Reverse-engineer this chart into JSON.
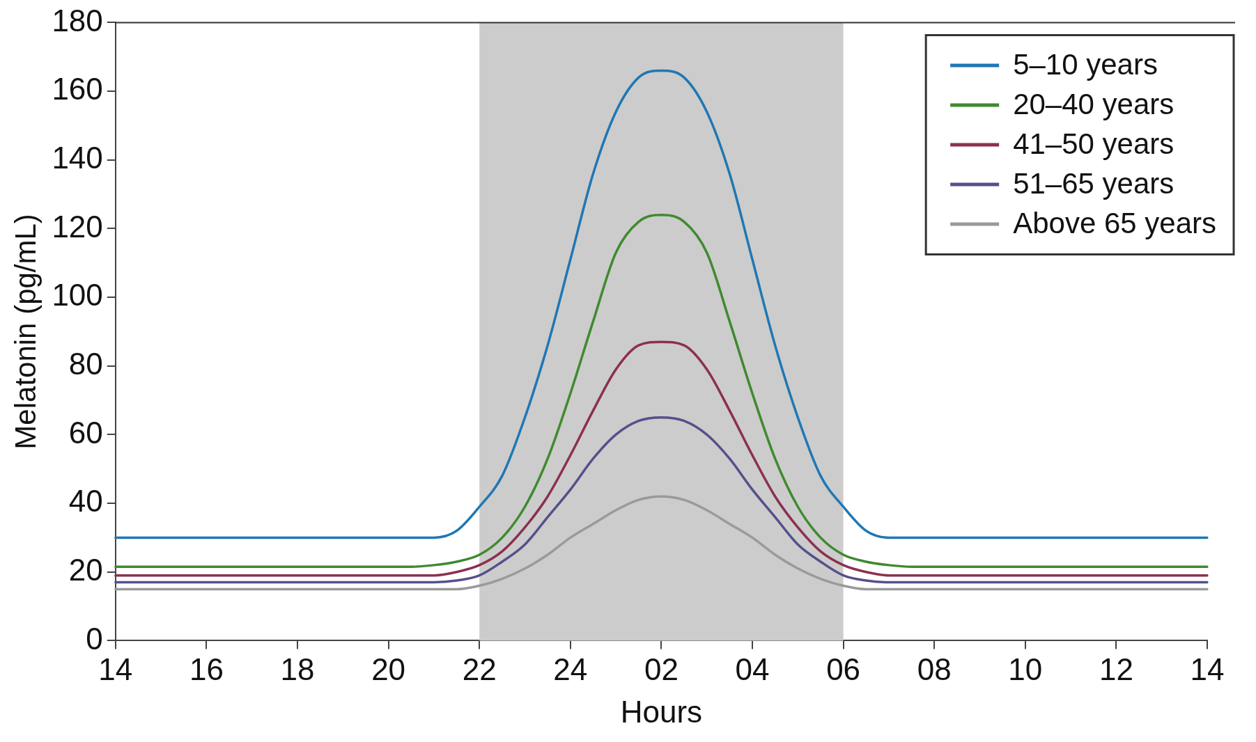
{
  "chart_data": {
    "type": "line",
    "xlabel": "Hours",
    "ylabel": "Melatonin (pg/mL)",
    "categories": [
      "14",
      null,
      null,
      null,
      "16",
      null,
      null,
      null,
      "18",
      null,
      null,
      null,
      "20",
      null,
      null,
      null,
      "22",
      null,
      null,
      null,
      "24",
      null,
      null,
      null,
      "02",
      null,
      null,
      null,
      "04",
      null,
      null,
      null,
      "06",
      null,
      null,
      null,
      "08",
      null,
      null,
      null,
      "10",
      null,
      null,
      null,
      "12",
      null,
      null,
      null,
      "14"
    ],
    "series": [
      {
        "name": "5–10 years",
        "color": "#1f77b4",
        "values": [
          30,
          30,
          30,
          30,
          30,
          30,
          30,
          30,
          30,
          30,
          30,
          30,
          30,
          30,
          30,
          32,
          39,
          48,
          65,
          86,
          111,
          136,
          154,
          164,
          166,
          164,
          154,
          136,
          111,
          86,
          65,
          48,
          39,
          32,
          30,
          30,
          30,
          30,
          30,
          30,
          30,
          30,
          30,
          30,
          30,
          30,
          30,
          30,
          30
        ]
      },
      {
        "name": "20–40 years",
        "color": "#3f8a2f",
        "values": [
          21.5,
          21.5,
          21.5,
          21.5,
          21.5,
          21.5,
          21.5,
          21.5,
          21.5,
          21.5,
          21.5,
          21.5,
          21.5,
          21.5,
          22,
          23,
          25,
          30,
          39,
          53,
          72,
          93,
          113,
          122,
          124,
          122,
          113,
          93,
          72,
          53,
          39,
          30,
          25,
          23,
          22,
          21.5,
          21.5,
          21.5,
          21.5,
          21.5,
          21.5,
          21.5,
          21.5,
          21.5,
          21.5,
          21.5,
          21.5,
          21.5,
          21.5
        ]
      },
      {
        "name": "41–50 years",
        "color": "#8b3050",
        "values": [
          19,
          19,
          19,
          19,
          19,
          19,
          19,
          19,
          19,
          19,
          19,
          19,
          19,
          19,
          19,
          20,
          22,
          26,
          33,
          42,
          54,
          67,
          79,
          86,
          87,
          86,
          79,
          67,
          54,
          42,
          33,
          26,
          22,
          20,
          19,
          19,
          19,
          19,
          19,
          19,
          19,
          19,
          19,
          19,
          19,
          19,
          19,
          19,
          19
        ]
      },
      {
        "name": "51–65 years",
        "color": "#55508c",
        "values": [
          17,
          17,
          17,
          17,
          17,
          17,
          17,
          17,
          17,
          17,
          17,
          17,
          17,
          17,
          17,
          17.5,
          19,
          23,
          28,
          36,
          44,
          53,
          60,
          64,
          65,
          64,
          60,
          53,
          44,
          36,
          28,
          23,
          19,
          17.5,
          17,
          17,
          17,
          17,
          17,
          17,
          17,
          17,
          17,
          17,
          17,
          17,
          17,
          17,
          17
        ]
      },
      {
        "name": "Above 65 years",
        "color": "#9a9a9a",
        "values": [
          15,
          15,
          15,
          15,
          15,
          15,
          15,
          15,
          15,
          15,
          15,
          15,
          15,
          15,
          15,
          15,
          16,
          18,
          21,
          25,
          30,
          34,
          38,
          41,
          42,
          41,
          38,
          34,
          30,
          25,
          21,
          18,
          16,
          15,
          15,
          15,
          15,
          15,
          15,
          15,
          15,
          15,
          15,
          15,
          15,
          15,
          15,
          15,
          15
        ]
      }
    ],
    "ylim": [
      0,
      180
    ],
    "yticks": [
      0,
      20,
      40,
      60,
      80,
      100,
      120,
      140,
      160,
      180
    ],
    "bands": [
      {
        "axis": "x",
        "from": "22",
        "to": "06",
        "color": "#cccccc"
      }
    ],
    "grid": false,
    "legend": "top right",
    "marker": "none",
    "line_style": "solid"
  }
}
